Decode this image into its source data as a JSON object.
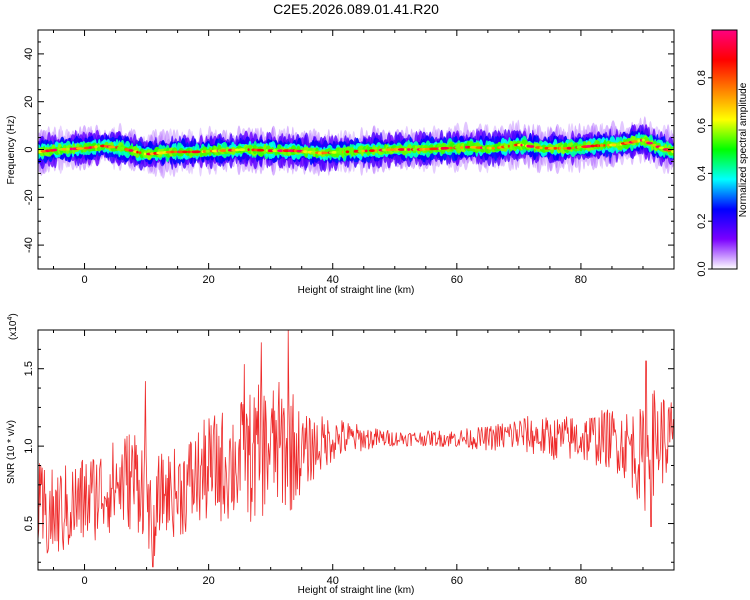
{
  "title": "C2E5.2026.089.01.41.R20",
  "colors": {
    "snr_line": "#ee2a2a",
    "frame": "#000000",
    "background": "#ffffff"
  },
  "chart_data": [
    {
      "type": "heatmap",
      "title": "",
      "xlabel": "Height of straight line (km)",
      "ylabel": "Frequency (Hz)",
      "xlim": [
        -7.5,
        95
      ],
      "ylim": [
        -50,
        50
      ],
      "xticks": [
        0,
        20,
        40,
        60,
        80
      ],
      "yticks": [
        40,
        20,
        0,
        -20,
        -40
      ],
      "xtick_labels": [
        "0",
        "20",
        "40",
        "60",
        "80"
      ],
      "ytick_labels": [
        "40",
        "20",
        "0",
        "-20",
        "-40"
      ],
      "ridge": {
        "x": [
          -7.5,
          -4,
          0,
          3,
          6,
          10,
          14,
          18,
          22,
          26,
          30,
          34,
          38,
          42,
          46,
          50,
          54,
          58,
          62,
          66,
          70,
          74,
          78,
          82,
          86,
          90,
          92,
          95
        ],
        "y": [
          -1,
          0,
          0.5,
          1.5,
          0.5,
          -2,
          -1,
          -1,
          -0.5,
          0,
          -0.5,
          -0.5,
          -1.5,
          -1,
          -0.5,
          0,
          0,
          0.5,
          1,
          0.5,
          2,
          0.5,
          0.5,
          1.5,
          2,
          4,
          1.5,
          -1
        ]
      },
      "colorbar": {
        "label": "Normalized spectral amplitude",
        "range": [
          0,
          1
        ],
        "ticks": [
          0.0,
          0.2,
          0.4,
          0.6,
          0.8
        ],
        "tick_labels": [
          "0.0",
          "0.2",
          "0.4",
          "0.6",
          "0.8"
        ],
        "colormap": [
          "#ffffff",
          "#7a00ff",
          "#0000ff",
          "#00ffff",
          "#00ff00",
          "#ffff00",
          "#ff8000",
          "#ff0000",
          "#ff0080"
        ]
      }
    },
    {
      "type": "line",
      "title": "",
      "xlabel": "Height of straight line (km)",
      "ylabel": "SNR (10 * v/v)",
      "scale_label": "(x10",
      "scale_exponent": "4",
      "scale_close": ")",
      "xlim": [
        -7.5,
        95
      ],
      "ylim": [
        0.2,
        1.75
      ],
      "xticks": [
        0,
        20,
        40,
        60,
        80
      ],
      "yticks": [
        0.5,
        1.0,
        1.5
      ],
      "xtick_labels": [
        "0",
        "20",
        "40",
        "60",
        "80"
      ],
      "ytick_labels": [
        "0.5",
        "1.0",
        "1.5"
      ],
      "series": [
        {
          "color": "#ee2a2a",
          "envelope_x": [
            -7.5,
            -5,
            0,
            5,
            8,
            10,
            11,
            12,
            15,
            20,
            25,
            28,
            30,
            33,
            35,
            40,
            45,
            50,
            55,
            60,
            65,
            70,
            75,
            80,
            85,
            88,
            90,
            92,
            95
          ],
          "envelope_mean": [
            0.55,
            0.55,
            0.65,
            0.75,
            0.8,
            0.75,
            0.4,
            0.7,
            0.7,
            0.85,
            0.9,
            0.95,
            1.0,
            1.0,
            0.95,
            1.05,
            1.05,
            1.05,
            1.05,
            1.05,
            1.05,
            1.08,
            1.05,
            1.05,
            1.05,
            1.0,
            0.9,
            1.05,
            1.05
          ],
          "envelope_amp": [
            0.35,
            0.3,
            0.3,
            0.3,
            0.35,
            0.35,
            0.2,
            0.25,
            0.3,
            0.35,
            0.4,
            0.45,
            0.4,
            0.45,
            0.25,
            0.15,
            0.08,
            0.05,
            0.05,
            0.06,
            0.08,
            0.12,
            0.14,
            0.16,
            0.2,
            0.25,
            0.35,
            0.35,
            0.25
          ],
          "peaks": [
            {
              "x": 9.8,
              "y": 1.42
            },
            {
              "x": 11.0,
              "y": 0.22
            },
            {
              "x": 25.8,
              "y": 1.53
            },
            {
              "x": 28.5,
              "y": 1.67
            },
            {
              "x": 32.8,
              "y": 1.75
            },
            {
              "x": 90.5,
              "y": 1.55
            },
            {
              "x": 91.3,
              "y": 0.48
            }
          ]
        }
      ]
    }
  ]
}
